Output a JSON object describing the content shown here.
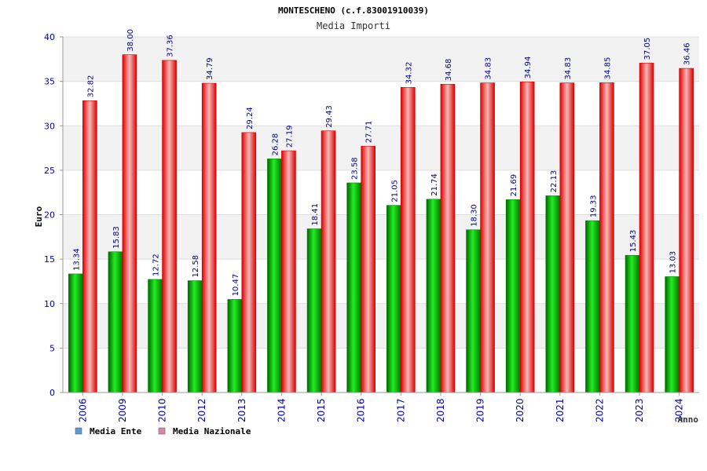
{
  "chart_data": {
    "type": "bar",
    "title": "MONTESCHENO (c.f.83001910039)",
    "subtitle": "Media Importi",
    "xlabel": "Anno",
    "ylabel": "Euro",
    "ylim": [
      0,
      40
    ],
    "yticks": [
      0,
      5,
      10,
      15,
      20,
      25,
      30,
      35,
      40
    ],
    "grid": true,
    "legend_position": "bottom-left",
    "categories": [
      "2006",
      "2009",
      "2010",
      "2012",
      "2013",
      "2014",
      "2015",
      "2016",
      "2017",
      "2018",
      "2019",
      "2020",
      "2021",
      "2022",
      "2023",
      "2024"
    ],
    "series": [
      {
        "name": "Media Ente",
        "color": "#00bb00",
        "legend_color": "#5b9bd5",
        "values": [
          13.34,
          15.83,
          12.72,
          12.58,
          10.47,
          26.28,
          18.41,
          23.58,
          21.05,
          21.74,
          18.3,
          21.69,
          22.13,
          19.33,
          15.43,
          13.03
        ],
        "labels": [
          "13.34",
          "15.83",
          "12.72",
          "12.58",
          "10.47",
          "26.28",
          "18.41",
          "23.58",
          "21.05",
          "21.74",
          "18.30",
          "21.69",
          "22.13",
          "19.33",
          "15.43",
          "13.03"
        ]
      },
      {
        "name": "Media Nazionale",
        "color": "#ee0000",
        "legend_color": "#d986a8",
        "values": [
          32.82,
          38.0,
          37.36,
          34.79,
          29.24,
          27.19,
          29.43,
          27.71,
          34.32,
          34.68,
          34.83,
          34.94,
          34.83,
          34.85,
          37.05,
          36.46
        ],
        "labels": [
          "32.82",
          "38.00",
          "37.36",
          "34.79",
          "29.24",
          "27.19",
          "29.43",
          "27.71",
          "34.32",
          "34.68",
          "34.83",
          "34.94",
          "34.83",
          "34.85",
          "37.05",
          "36.46"
        ]
      }
    ]
  }
}
